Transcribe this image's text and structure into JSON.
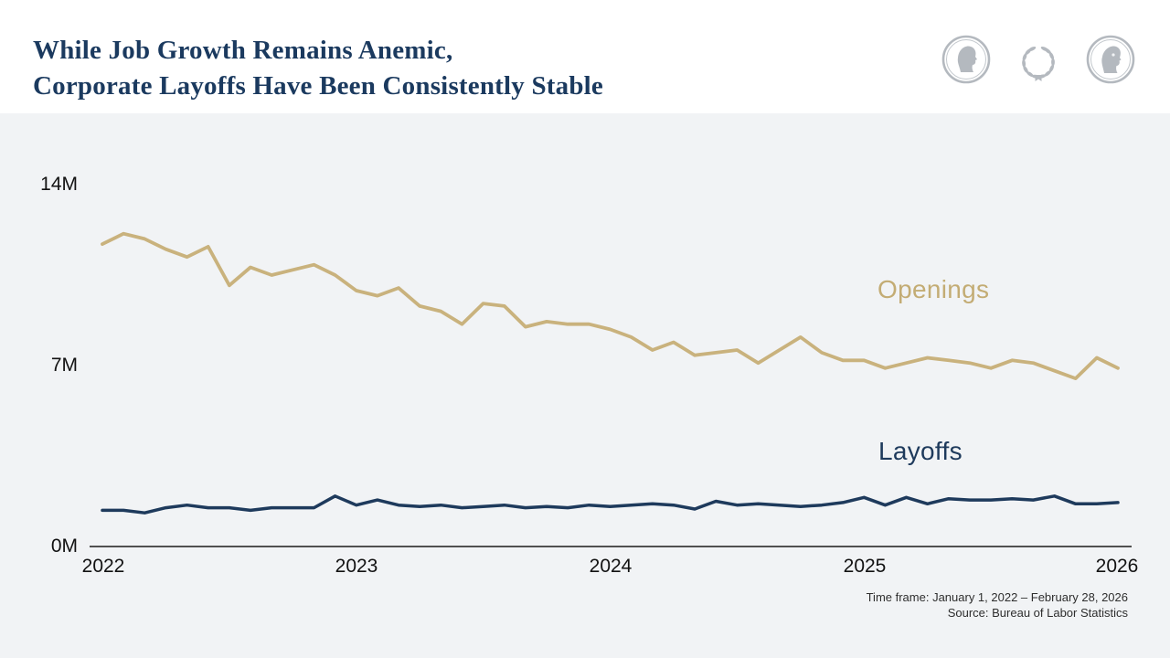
{
  "header": {
    "title_line1": "While Job Growth Remains Anemic,",
    "title_line2": "Corporate Layoffs Have Been Consistently Stable",
    "logo_icons": [
      {
        "name": "coin-head-left-icon"
      },
      {
        "name": "laurel-wreath-icon"
      },
      {
        "name": "coin-head-right-icon"
      }
    ]
  },
  "chart_data": {
    "type": "line",
    "title": "",
    "x_unit": "month",
    "x_range": [
      "2022-01",
      "2026-01"
    ],
    "x_tick_labels": [
      "2022",
      "2023",
      "2024",
      "2025",
      "2026"
    ],
    "y_tick_labels": [
      "0M",
      "7M",
      "14M"
    ],
    "ylim": [
      0,
      14
    ],
    "y_unit": "millions of jobs",
    "grid": false,
    "legend": "inline-labels",
    "series": [
      {
        "name": "Openings",
        "color": "#c9b27d",
        "label_color": "#c3ac74",
        "values": [
          11.7,
          12.1,
          11.9,
          11.5,
          11.2,
          11.6,
          10.1,
          10.8,
          10.5,
          10.7,
          10.9,
          10.5,
          9.9,
          9.7,
          10.0,
          9.3,
          9.1,
          8.6,
          9.4,
          9.3,
          8.5,
          8.7,
          8.6,
          8.6,
          8.4,
          8.1,
          7.6,
          7.9,
          7.4,
          7.5,
          7.6,
          7.1,
          7.6,
          8.1,
          7.5,
          7.2,
          7.2,
          6.9,
          7.1,
          7.3,
          7.2,
          7.1,
          6.9,
          7.2,
          7.1,
          6.8,
          6.5,
          7.3,
          6.9
        ]
      },
      {
        "name": "Layoffs",
        "color": "#1e3a5c",
        "label_color": "#1e3a5c",
        "values": [
          1.4,
          1.4,
          1.3,
          1.5,
          1.6,
          1.5,
          1.5,
          1.4,
          1.5,
          1.5,
          1.5,
          1.95,
          1.6,
          1.8,
          1.6,
          1.55,
          1.6,
          1.5,
          1.55,
          1.6,
          1.5,
          1.55,
          1.5,
          1.6,
          1.55,
          1.6,
          1.65,
          1.6,
          1.45,
          1.75,
          1.6,
          1.65,
          1.6,
          1.55,
          1.6,
          1.7,
          1.9,
          1.6,
          1.9,
          1.65,
          1.85,
          1.8,
          1.8,
          1.85,
          1.8,
          1.95,
          1.65,
          1.65,
          1.7
        ]
      }
    ]
  },
  "footer": {
    "time_frame": "Time frame: January 1, 2022 – February 28, 2026",
    "source": "Source: Bureau of Labor Statistics"
  },
  "colors": {
    "title": "#1b3a5f",
    "panel_background": "#f1f3f5",
    "header_background": "#ffffff",
    "axis": "#1a1a1a",
    "logo_gray": "#b4b9bf"
  }
}
